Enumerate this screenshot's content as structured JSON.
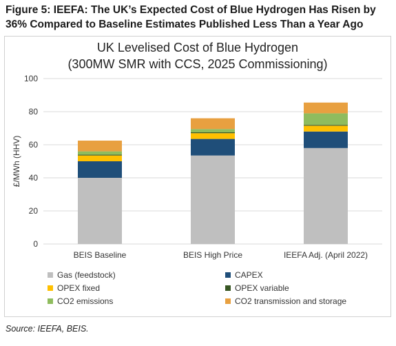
{
  "figure": {
    "title_line1": "Figure 5: IEEFA: The UK’s Expected Cost of Blue Hydrogen Has Risen by",
    "title_line2": "36% Compared to Baseline Estimates Published Less Than a Year Ago",
    "source": "Source: IEEFA, BEIS."
  },
  "chart_data": {
    "type": "bar",
    "stacked": true,
    "title": "UK Levelised Cost of Blue Hydrogen",
    "subtitle": "(300MW SMR with CCS, 2025 Commissioning)",
    "xlabel": "",
    "ylabel": "£/MWh (HHV)",
    "ylim": [
      0,
      100
    ],
    "yticks": [
      0,
      20,
      40,
      60,
      80,
      100
    ],
    "grid": true,
    "legend_position": "bottom",
    "categories": [
      "BEIS Baseline",
      "BEIS High Price",
      "IEEFA Adj. (April 2022)"
    ],
    "series": [
      {
        "name": "Gas (feedstock)",
        "color": "#bfbfbf",
        "values": [
          40,
          53.5,
          58
        ]
      },
      {
        "name": "CAPEX",
        "color": "#1f4e79",
        "values": [
          10,
          10,
          10
        ]
      },
      {
        "name": "OPEX fixed",
        "color": "#ffc000",
        "values": [
          3.5,
          3.5,
          3.5
        ]
      },
      {
        "name": "OPEX variable",
        "color": "#375623",
        "values": [
          0.5,
          0.5,
          0.5
        ]
      },
      {
        "name": "CO2 emissions",
        "color": "#8fbc5e",
        "values": [
          2,
          2,
          7
        ]
      },
      {
        "name": "CO2 transmission and storage",
        "color": "#e8a040",
        "values": [
          6.5,
          6.5,
          6.5
        ]
      }
    ]
  }
}
